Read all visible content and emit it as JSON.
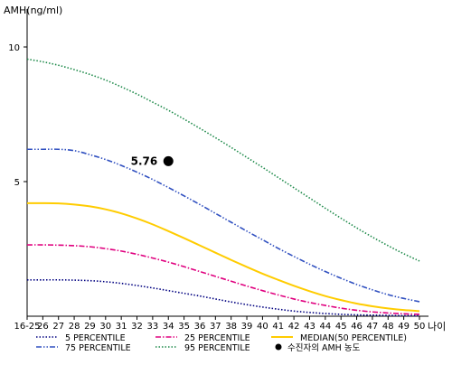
{
  "chart_data": {
    "type": "line",
    "ylabel": "AMH(ng/ml)",
    "xlabel": "나이",
    "ylim": [
      0,
      11
    ],
    "yticks": [
      5,
      10
    ],
    "categories": [
      "16-25",
      "26",
      "27",
      "28",
      "29",
      "30",
      "31",
      "32",
      "33",
      "34",
      "35",
      "36",
      "37",
      "38",
      "39",
      "40",
      "41",
      "42",
      "43",
      "44",
      "45",
      "46",
      "47",
      "48",
      "49",
      "50"
    ],
    "grid": false,
    "legend_position": "bottom",
    "series": [
      {
        "name": "5 PERCENTILE",
        "color": "#000080",
        "dash": "dot",
        "values": [
          1.35,
          1.35,
          1.35,
          1.34,
          1.32,
          1.28,
          1.22,
          1.14,
          1.05,
          0.95,
          0.85,
          0.75,
          0.64,
          0.53,
          0.43,
          0.34,
          0.26,
          0.19,
          0.14,
          0.1,
          0.07,
          0.05,
          0.04,
          0.03,
          0.02,
          0.02
        ]
      },
      {
        "name": "25 PERCENTILE",
        "color": "#e0007f",
        "dash": "dashdot",
        "values": [
          2.65,
          2.65,
          2.64,
          2.62,
          2.58,
          2.51,
          2.42,
          2.3,
          2.16,
          2.01,
          1.84,
          1.66,
          1.48,
          1.3,
          1.12,
          0.95,
          0.79,
          0.64,
          0.51,
          0.4,
          0.3,
          0.22,
          0.16,
          0.12,
          0.09,
          0.07
        ]
      },
      {
        "name": "MEDIAN(50 PERCENTILE)",
        "color": "#ffcc00",
        "dash": "solid",
        "values": [
          4.2,
          4.2,
          4.19,
          4.15,
          4.08,
          3.97,
          3.82,
          3.63,
          3.41,
          3.16,
          2.9,
          2.63,
          2.36,
          2.09,
          1.83,
          1.58,
          1.35,
          1.13,
          0.93,
          0.75,
          0.6,
          0.47,
          0.37,
          0.29,
          0.23,
          0.19
        ]
      },
      {
        "name": "75 PERCENTILE",
        "color": "#3050c0",
        "dash": "dashdotdot",
        "values": [
          6.2,
          6.2,
          6.2,
          6.15,
          6.0,
          5.82,
          5.6,
          5.35,
          5.08,
          4.78,
          4.47,
          4.15,
          3.82,
          3.49,
          3.16,
          2.84,
          2.52,
          2.22,
          1.93,
          1.66,
          1.41,
          1.18,
          0.98,
          0.8,
          0.66,
          0.54
        ]
      },
      {
        "name": "95 PERCENTILE",
        "color": "#1e8a4a",
        "dash": "dot",
        "values": [
          9.55,
          9.45,
          9.32,
          9.16,
          8.98,
          8.77,
          8.52,
          8.25,
          7.95,
          7.65,
          7.32,
          6.98,
          6.63,
          6.27,
          5.9,
          5.53,
          5.15,
          4.77,
          4.39,
          4.01,
          3.64,
          3.28,
          2.94,
          2.62,
          2.32,
          2.05
        ]
      }
    ],
    "points": [
      {
        "name": "수진자의 AMH 농도",
        "x": "34",
        "y": 5.76,
        "label": "5.76",
        "color": "#000000"
      }
    ],
    "legend_order": [
      "5 PERCENTILE",
      "25 PERCENTILE",
      "MEDIAN(50 PERCENTILE)",
      "75 PERCENTILE",
      "95 PERCENTILE",
      "수진자의 AMH 농도"
    ]
  }
}
